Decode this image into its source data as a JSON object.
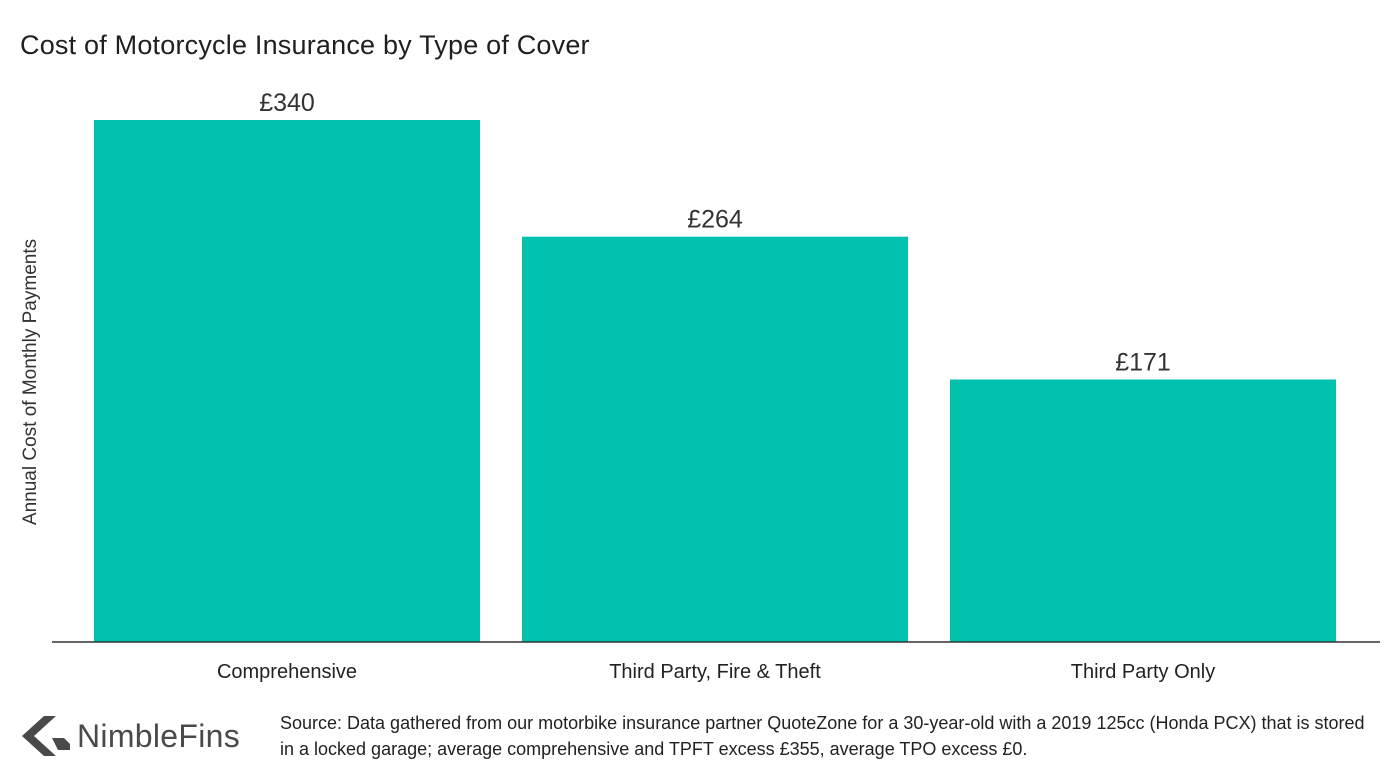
{
  "chart_data": {
    "type": "bar",
    "title": "Cost of Motorcycle Insurance by Type of Cover",
    "ylabel": "Annual Cost of Monthly Payments",
    "xlabel": "",
    "categories": [
      "Comprehensive",
      "Third Party, Fire & Theft",
      "Third Party Only"
    ],
    "values": [
      340,
      264,
      171
    ],
    "value_labels": [
      "£340",
      "£264",
      "£171"
    ],
    "ylim": [
      0,
      340
    ],
    "grid": false,
    "bar_color": "#00c1ae"
  },
  "footer": {
    "logo_text": "NimbleFins",
    "logo_icon": "chevron-left-icon",
    "source": "Source: Data gathered from our motorbike insurance partner QuoteZone for a 30-year-old with a 2019 125cc (Honda PCX) that is stored in a locked garage; average comprehensive and TPFT excess £355, average TPO excess £0."
  },
  "colors": {
    "bar": "#00c1ae",
    "axis": "#333333",
    "logo": "#4a4a4a"
  }
}
